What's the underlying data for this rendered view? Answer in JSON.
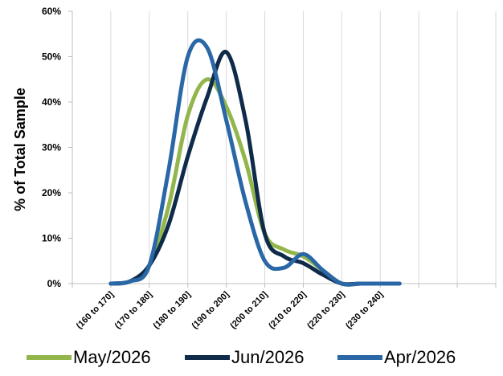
{
  "chart_data": {
    "type": "line",
    "ylabel": "% of Total Sample",
    "xlabel": "",
    "y_format": "percent",
    "ylim": [
      0,
      0.6
    ],
    "y_ticks": [
      0,
      0.1,
      0.2,
      0.3,
      0.4,
      0.5,
      0.6
    ],
    "y_tick_labels": [
      "0%",
      "10%",
      "20%",
      "30%",
      "40%",
      "50%",
      "60%"
    ],
    "grid": "vertical",
    "categories": [
      "(160 to 170]",
      "(170 to 180]",
      "(180 to 190]",
      "(190 to 200]",
      "(200 to 210]",
      "(210 to 220]",
      "(220 to 230]",
      "(230 to 240]"
    ],
    "extra_x_slots": 3,
    "smooth": true,
    "legend_position": "bottom",
    "series": [
      {
        "name": "May/2026",
        "color": "#92b64c",
        "x": [
          0,
          0.5,
          1,
          1.5,
          2,
          2.5,
          3,
          3.5,
          4,
          4.5,
          5,
          5.5,
          6,
          6.5,
          7,
          7.5
        ],
        "values": [
          0.0,
          0.005,
          0.04,
          0.17,
          0.37,
          0.45,
          0.39,
          0.27,
          0.11,
          0.075,
          0.06,
          0.03,
          0.0,
          0.0,
          0.0,
          0.0
        ]
      },
      {
        "name": "Jun/2026",
        "color": "#0f2b4a",
        "x": [
          0,
          0.5,
          1,
          1.5,
          2,
          2.5,
          3,
          3.5,
          4,
          4.5,
          5,
          5.5,
          6,
          6.5,
          7,
          7.5
        ],
        "values": [
          0.0,
          0.005,
          0.04,
          0.13,
          0.28,
          0.41,
          0.51,
          0.36,
          0.11,
          0.06,
          0.045,
          0.02,
          0.0,
          0.0,
          0.0,
          0.0
        ]
      },
      {
        "name": "Apr/2026",
        "color": "#2a67a6",
        "x": [
          0,
          0.5,
          1,
          1.5,
          2,
          2.5,
          3,
          3.5,
          4,
          4.5,
          5,
          5.5,
          6,
          6.5,
          7,
          7.5
        ],
        "values": [
          0.0,
          0.005,
          0.04,
          0.25,
          0.5,
          0.52,
          0.36,
          0.18,
          0.05,
          0.035,
          0.065,
          0.03,
          0.0,
          0.0,
          0.0,
          0.0
        ]
      }
    ]
  }
}
